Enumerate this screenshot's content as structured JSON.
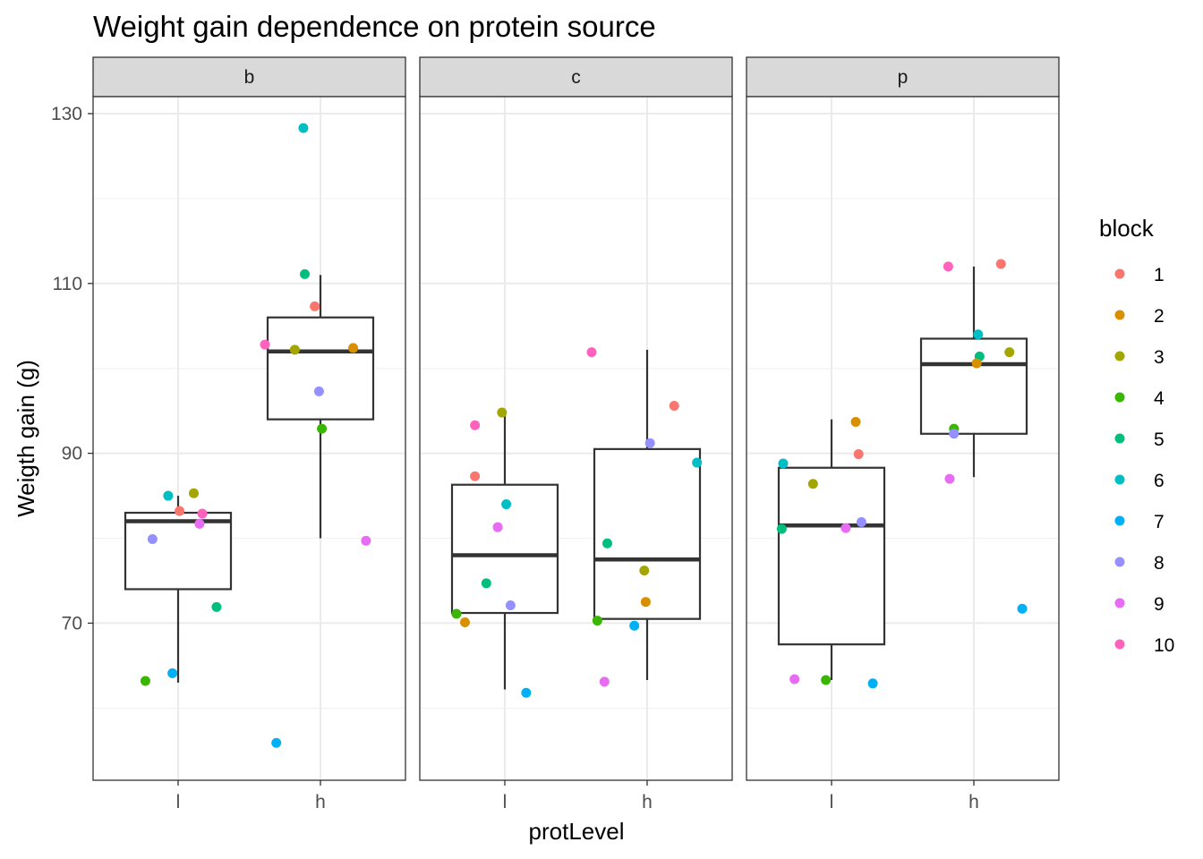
{
  "chart_data": {
    "type": "boxplot",
    "title": "Weight gain dependence on protein source",
    "xlabel": "protLevel",
    "ylabel": "Weigth gain (g)",
    "ylim": [
      51.5,
      132
    ],
    "yticks": [
      70,
      90,
      110,
      130
    ],
    "categories": [
      "l",
      "h"
    ],
    "facets": [
      "b",
      "c",
      "p"
    ],
    "grid": true,
    "legend": {
      "title": "block",
      "position": "right",
      "entries": [
        {
          "label": "1",
          "color": "#F8766D"
        },
        {
          "label": "2",
          "color": "#D89000"
        },
        {
          "label": "3",
          "color": "#A3A500"
        },
        {
          "label": "4",
          "color": "#39B600"
        },
        {
          "label": "5",
          "color": "#00BF7D"
        },
        {
          "label": "6",
          "color": "#00BFC4"
        },
        {
          "label": "7",
          "color": "#00B0F6"
        },
        {
          "label": "8",
          "color": "#9590FF"
        },
        {
          "label": "9",
          "color": "#E76BF3"
        },
        {
          "label": "10",
          "color": "#FF62BC"
        }
      ]
    },
    "panels": [
      {
        "facet": "b",
        "boxes": [
          {
            "category": "l",
            "whisker_low": 63,
            "q1": 74,
            "median": 82,
            "q3": 83,
            "whisker_high": 85
          },
          {
            "category": "h",
            "whisker_low": 80,
            "q1": 94,
            "median": 102,
            "q3": 106,
            "whisker_high": 111
          }
        ],
        "points": [
          {
            "category": "l",
            "jitter": 0.01,
            "y": 83.2,
            "block": "1"
          },
          {
            "category": "l",
            "jitter": 0.11,
            "y": 85.3,
            "block": "3"
          },
          {
            "category": "l",
            "jitter": -0.07,
            "y": 85.0,
            "block": "6"
          },
          {
            "category": "l",
            "jitter": 0.17,
            "y": 82.9,
            "block": "10"
          },
          {
            "category": "l",
            "jitter": 0.15,
            "y": 81.7,
            "block": "9"
          },
          {
            "category": "l",
            "jitter": -0.18,
            "y": 79.9,
            "block": "8"
          },
          {
            "category": "l",
            "jitter": 0.27,
            "y": 71.9,
            "block": "5"
          },
          {
            "category": "l",
            "jitter": -0.04,
            "y": 64.1,
            "block": "7"
          },
          {
            "category": "l",
            "jitter": -0.23,
            "y": 63.2,
            "block": "4"
          },
          {
            "category": "h",
            "jitter": -0.12,
            "y": 128.3,
            "block": "6"
          },
          {
            "category": "h",
            "jitter": -0.11,
            "y": 111.1,
            "block": "5"
          },
          {
            "category": "h",
            "jitter": -0.04,
            "y": 107.3,
            "block": "1"
          },
          {
            "category": "h",
            "jitter": -0.39,
            "y": 102.8,
            "block": "10"
          },
          {
            "category": "h",
            "jitter": -0.18,
            "y": 102.2,
            "block": "3"
          },
          {
            "category": "h",
            "jitter": 0.23,
            "y": 102.4,
            "block": "2"
          },
          {
            "category": "h",
            "jitter": -0.01,
            "y": 97.3,
            "block": "8"
          },
          {
            "category": "h",
            "jitter": 0.01,
            "y": 92.9,
            "block": "4"
          },
          {
            "category": "h",
            "jitter": 0.32,
            "y": 79.7,
            "block": "9"
          },
          {
            "category": "h",
            "jitter": -0.31,
            "y": 55.9,
            "block": "7"
          }
        ]
      },
      {
        "facet": "c",
        "boxes": [
          {
            "category": "l",
            "whisker_low": 62.2,
            "q1": 71.2,
            "median": 78,
            "q3": 86.3,
            "whisker_high": 95
          },
          {
            "category": "h",
            "whisker_low": 63.3,
            "q1": 70.5,
            "median": 77.5,
            "q3": 90.5,
            "whisker_high": 102.2
          }
        ],
        "points": [
          {
            "category": "l",
            "jitter": -0.02,
            "y": 94.8,
            "block": "3"
          },
          {
            "category": "l",
            "jitter": -0.21,
            "y": 93.3,
            "block": "10"
          },
          {
            "category": "l",
            "jitter": -0.21,
            "y": 87.3,
            "block": "1"
          },
          {
            "category": "l",
            "jitter": 0.01,
            "y": 84.0,
            "block": "6"
          },
          {
            "category": "l",
            "jitter": -0.05,
            "y": 81.3,
            "block": "9"
          },
          {
            "category": "l",
            "jitter": -0.13,
            "y": 74.7,
            "block": "5"
          },
          {
            "category": "l",
            "jitter": 0.04,
            "y": 72.1,
            "block": "8"
          },
          {
            "category": "l",
            "jitter": -0.34,
            "y": 71.1,
            "block": "4"
          },
          {
            "category": "l",
            "jitter": -0.28,
            "y": 70.1,
            "block": "2"
          },
          {
            "category": "l",
            "jitter": 0.15,
            "y": 61.8,
            "block": "7"
          },
          {
            "category": "h",
            "jitter": -0.39,
            "y": 101.9,
            "block": "10"
          },
          {
            "category": "h",
            "jitter": 0.19,
            "y": 95.6,
            "block": "1"
          },
          {
            "category": "h",
            "jitter": 0.02,
            "y": 91.2,
            "block": "8"
          },
          {
            "category": "h",
            "jitter": 0.35,
            "y": 88.9,
            "block": "6"
          },
          {
            "category": "h",
            "jitter": -0.28,
            "y": 79.4,
            "block": "5"
          },
          {
            "category": "h",
            "jitter": -0.02,
            "y": 76.2,
            "block": "3"
          },
          {
            "category": "h",
            "jitter": -0.01,
            "y": 72.5,
            "block": "2"
          },
          {
            "category": "h",
            "jitter": -0.35,
            "y": 70.3,
            "block": "4"
          },
          {
            "category": "h",
            "jitter": -0.09,
            "y": 69.7,
            "block": "7"
          },
          {
            "category": "h",
            "jitter": -0.3,
            "y": 63.1,
            "block": "9"
          }
        ]
      },
      {
        "facet": "p",
        "boxes": [
          {
            "category": "l",
            "whisker_low": 63.3,
            "q1": 67.5,
            "median": 81.5,
            "q3": 88.3,
            "whisker_high": 94
          },
          {
            "category": "h",
            "whisker_low": 87.2,
            "q1": 92.3,
            "median": 100.5,
            "q3": 103.5,
            "whisker_high": 112
          }
        ],
        "points": [
          {
            "category": "l",
            "jitter": 0.17,
            "y": 93.7,
            "block": "2"
          },
          {
            "category": "l",
            "jitter": 0.19,
            "y": 89.9,
            "block": "1"
          },
          {
            "category": "l",
            "jitter": -0.34,
            "y": 88.8,
            "block": "6"
          },
          {
            "category": "l",
            "jitter": -0.13,
            "y": 86.4,
            "block": "3"
          },
          {
            "category": "l",
            "jitter": 0.21,
            "y": 81.9,
            "block": "8"
          },
          {
            "category": "l",
            "jitter": 0.1,
            "y": 81.2,
            "block": "9"
          },
          {
            "category": "l",
            "jitter": -0.35,
            "y": 81.1,
            "block": "5"
          },
          {
            "category": "l",
            "jitter": -0.26,
            "y": 63.4,
            "block": "9"
          },
          {
            "category": "l",
            "jitter": -0.04,
            "y": 63.3,
            "block": "4"
          },
          {
            "category": "l",
            "jitter": 0.29,
            "y": 62.9,
            "block": "7"
          },
          {
            "category": "h",
            "jitter": 0.19,
            "y": 112.3,
            "block": "1"
          },
          {
            "category": "h",
            "jitter": -0.18,
            "y": 112.0,
            "block": "10"
          },
          {
            "category": "h",
            "jitter": 0.03,
            "y": 104.0,
            "block": "6"
          },
          {
            "category": "h",
            "jitter": 0.25,
            "y": 101.9,
            "block": "3"
          },
          {
            "category": "h",
            "jitter": 0.04,
            "y": 101.4,
            "block": "5"
          },
          {
            "category": "h",
            "jitter": 0.02,
            "y": 100.6,
            "block": "2"
          },
          {
            "category": "h",
            "jitter": -0.14,
            "y": 92.9,
            "block": "4"
          },
          {
            "category": "h",
            "jitter": -0.14,
            "y": 92.3,
            "block": "8"
          },
          {
            "category": "h",
            "jitter": -0.17,
            "y": 87.0,
            "block": "9"
          },
          {
            "category": "h",
            "jitter": 0.34,
            "y": 71.7,
            "block": "7"
          }
        ]
      }
    ]
  }
}
